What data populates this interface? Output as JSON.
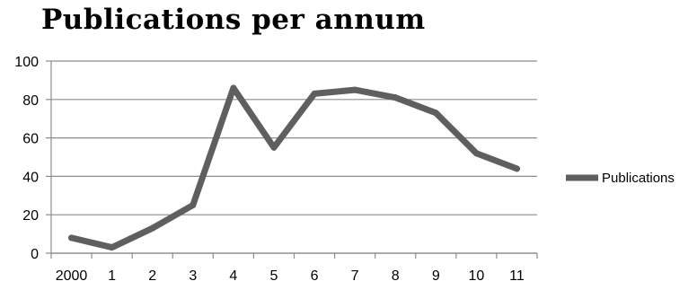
{
  "chart_data": {
    "type": "line",
    "title": "Publications per annum",
    "xlabel": "",
    "ylabel": "",
    "categories": [
      "2000",
      "1",
      "2",
      "3",
      "4",
      "5",
      "6",
      "7",
      "8",
      "9",
      "10",
      "11"
    ],
    "series": [
      {
        "name": "Publications",
        "values": [
          8,
          3,
          13,
          25,
          86,
          55,
          83,
          85,
          81,
          73,
          52,
          44
        ]
      }
    ],
    "ylim": [
      0,
      100
    ],
    "yticks": [
      0,
      20,
      40,
      60,
      80,
      100
    ],
    "grid": true,
    "legend": "right",
    "colors": {
      "series": "#5f5f5f",
      "grid": "#8c8c8c",
      "axis": "#8c8c8c"
    }
  }
}
